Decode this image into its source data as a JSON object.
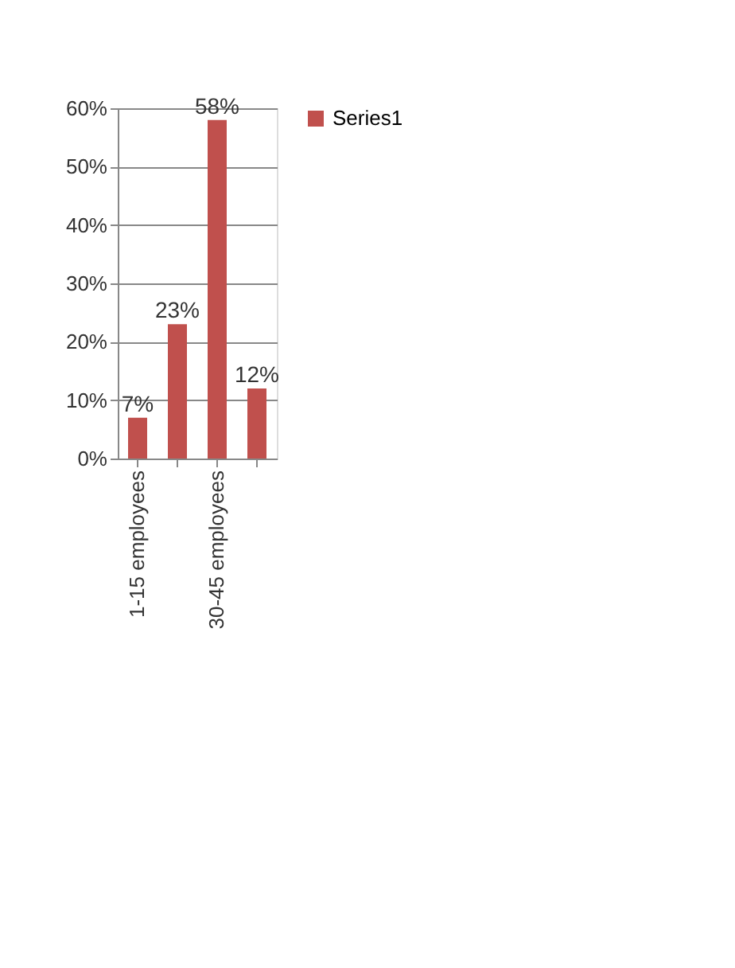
{
  "chart_data": {
    "type": "bar",
    "categories": [
      "1-15 employees",
      null,
      "30-45 employees",
      null
    ],
    "series": [
      {
        "name": "Series1",
        "color": "#c0504d",
        "values": [
          7,
          23,
          58,
          12
        ],
        "value_labels": [
          "7%",
          "23%",
          "58%",
          "12%"
        ]
      }
    ],
    "ylim": [
      0,
      60
    ],
    "yticks": [
      {
        "value": 0,
        "label": "0%"
      },
      {
        "value": 10,
        "label": "10%"
      },
      {
        "value": 20,
        "label": "20%"
      },
      {
        "value": 30,
        "label": "30%"
      },
      {
        "value": 40,
        "label": "40%"
      },
      {
        "value": 50,
        "label": "50%"
      },
      {
        "value": 60,
        "label": "60%"
      }
    ],
    "grid": "y",
    "legend": "right"
  }
}
